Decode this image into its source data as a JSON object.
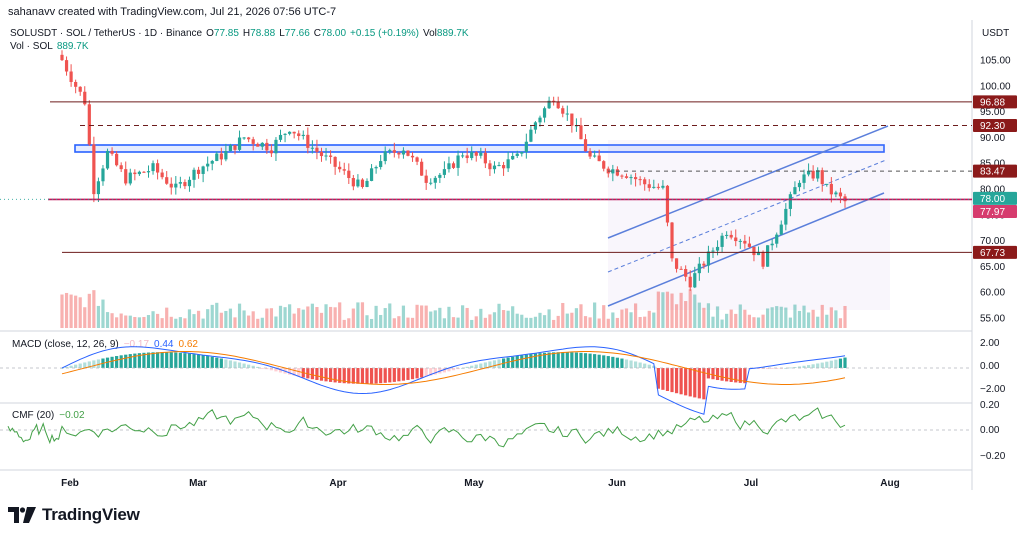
{
  "header": {
    "created_by": "sahanavv created with TradingView.com, Jul 21, 2026 07:56 UTC-7"
  },
  "legend": {
    "symbol": "SOLUSDT · SOL / TetherUS · 1D · Binance",
    "open_label": "O",
    "open": "77.85",
    "high_label": "H",
    "high": "78.88",
    "low_label": "L",
    "low": "77.66",
    "close_label": "C",
    "close": "78.00",
    "change": "+0.15 (+0.19%)",
    "vol_label": "Vol",
    "vol": "889.7K",
    "vol_series_label": "Vol · SOL",
    "vol_series_value": "889.7K"
  },
  "macd_legend": {
    "label": "MACD (close, 12, 26, 9)",
    "hist": "−0.17",
    "macd": "0.44",
    "signal": "0.62"
  },
  "cmf_legend": {
    "label": "CMF (20)",
    "value": "−0.02"
  },
  "axis": {
    "currency": "USDT",
    "price_ticks": [
      "105.00",
      "100.00",
      "95.00",
      "90.00",
      "85.00",
      "80.00",
      "75.00",
      "70.00",
      "65.00",
      "60.00",
      "55.00"
    ],
    "macd_ticks": [
      "2.00",
      "0.00",
      "−2.00"
    ],
    "cmf_ticks": [
      "0.20",
      "0.00",
      "−0.20"
    ],
    "date_ticks": [
      "Feb",
      "Mar",
      "Apr",
      "May",
      "Jun",
      "Jul",
      "Aug"
    ]
  },
  "badges": [
    {
      "text": "96.88",
      "color": "#8b1a1a"
    },
    {
      "text": "92.30",
      "color": "#8b1a1a"
    },
    {
      "text": "83.47",
      "color": "#8b1a1a"
    },
    {
      "text": "78.00",
      "color": "#26a69a"
    },
    {
      "text": "77.97",
      "color": "#d63c6e"
    },
    {
      "text": "67.73",
      "color": "#8b1a1a"
    }
  ],
  "colors": {
    "up": "#26a69a",
    "down": "#ef5350",
    "resistance": "#6d1c1c",
    "magenta": "#c2185b",
    "channel": "#5b7fdb",
    "zone": "#2962ff",
    "macd_line": "#2962ff",
    "signal_line": "#f57c00",
    "cmf_line": "#43a047"
  },
  "logo": {
    "text": "TradingView",
    "icon": "tradingview-logo-icon"
  }
}
